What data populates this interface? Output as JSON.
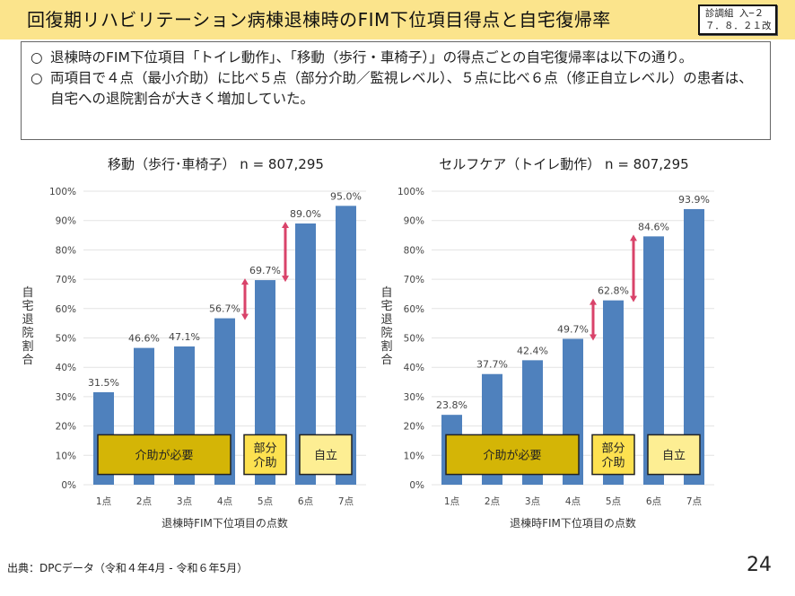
{
  "header": {
    "title": "回復期リハビリテーション病棟退棟時のFIM下位項目得点と自宅復帰率",
    "badge_line1": "診調組 入−２",
    "badge_line2": "７．８．２１改",
    "background": "#fbe48c"
  },
  "summary": {
    "bullet_icon": "○",
    "items": [
      "退棟時のFIM下位項目「トイレ動作」、「移動（歩行・車椅子）」の得点ごとの自宅復帰率は以下の通り。",
      "両項目で４点（最小介助）に比べ５点（部分介助／監視レベル）、５点に比べ６点（修正自立レベル）の患者は、自宅への退院割合が大きく増加していた。"
    ]
  },
  "chart_data": [
    {
      "type": "bar",
      "title": "移動（歩行･車椅子） n = 807,295",
      "xlabel": "退棟時FIM下位項目の点数",
      "ylabel": "自宅退院割合",
      "categories": [
        "1点",
        "2点",
        "3点",
        "4点",
        "5点",
        "6点",
        "7点"
      ],
      "values": [
        31.5,
        46.6,
        47.1,
        56.7,
        69.7,
        89.0,
        95.0
      ],
      "data_labels": [
        "31.5%",
        "46.6%",
        "47.1%",
        "56.7%",
        "69.7%",
        "89.0%",
        "95.0%"
      ],
      "ylim": [
        0,
        100
      ],
      "yticks": [
        "0%",
        "10%",
        "20%",
        "30%",
        "40%",
        "50%",
        "60%",
        "70%",
        "80%",
        "90%",
        "100%"
      ],
      "grid": true,
      "bar_color": "#4f81bd",
      "arrows": [
        {
          "from_category": "4点",
          "to_category": "5点",
          "from_value": 56.7,
          "to_value": 69.7
        },
        {
          "from_category": "5点",
          "to_category": "6点",
          "from_value": 69.7,
          "to_value": 89.0
        }
      ],
      "arrow_color": "#d9436a",
      "annotations": [
        {
          "label": "介助が必要",
          "span": [
            "1点",
            "4点"
          ],
          "color": "#d4b506"
        },
        {
          "label": "部分\n介助",
          "span": [
            "5点",
            "5点"
          ],
          "color": "#fde150"
        },
        {
          "label": "自立",
          "span": [
            "6点",
            "7点"
          ],
          "color": "#fdee93"
        }
      ]
    },
    {
      "type": "bar",
      "title": "セルフケア（トイレ動作） n = 807,295",
      "xlabel": "退棟時FIM下位項目の点数",
      "ylabel": "自宅退院割合",
      "categories": [
        "1点",
        "2点",
        "3点",
        "4点",
        "5点",
        "6点",
        "7点"
      ],
      "values": [
        23.8,
        37.7,
        42.4,
        49.7,
        62.8,
        84.6,
        93.9
      ],
      "data_labels": [
        "23.8%",
        "37.7%",
        "42.4%",
        "49.7%",
        "62.8%",
        "84.6%",
        "93.9%"
      ],
      "ylim": [
        0,
        100
      ],
      "yticks": [
        "0%",
        "10%",
        "20%",
        "30%",
        "40%",
        "50%",
        "60%",
        "70%",
        "80%",
        "90%",
        "100%"
      ],
      "grid": true,
      "bar_color": "#4f81bd",
      "arrows": [
        {
          "from_category": "4点",
          "to_category": "5点",
          "from_value": 49.7,
          "to_value": 62.8
        },
        {
          "from_category": "5点",
          "to_category": "6点",
          "from_value": 62.8,
          "to_value": 84.6
        }
      ],
      "arrow_color": "#d9436a",
      "annotations": [
        {
          "label": "介助が必要",
          "span": [
            "1点",
            "4点"
          ],
          "color": "#d4b506"
        },
        {
          "label": "部分\n介助",
          "span": [
            "5点",
            "5点"
          ],
          "color": "#fde150"
        },
        {
          "label": "自立",
          "span": [
            "6点",
            "7点"
          ],
          "color": "#fdee93"
        }
      ]
    }
  ],
  "footer": {
    "source": "出典：DPCデータ（令和４年4月 - 令和６年5月）",
    "page_number": "24"
  }
}
